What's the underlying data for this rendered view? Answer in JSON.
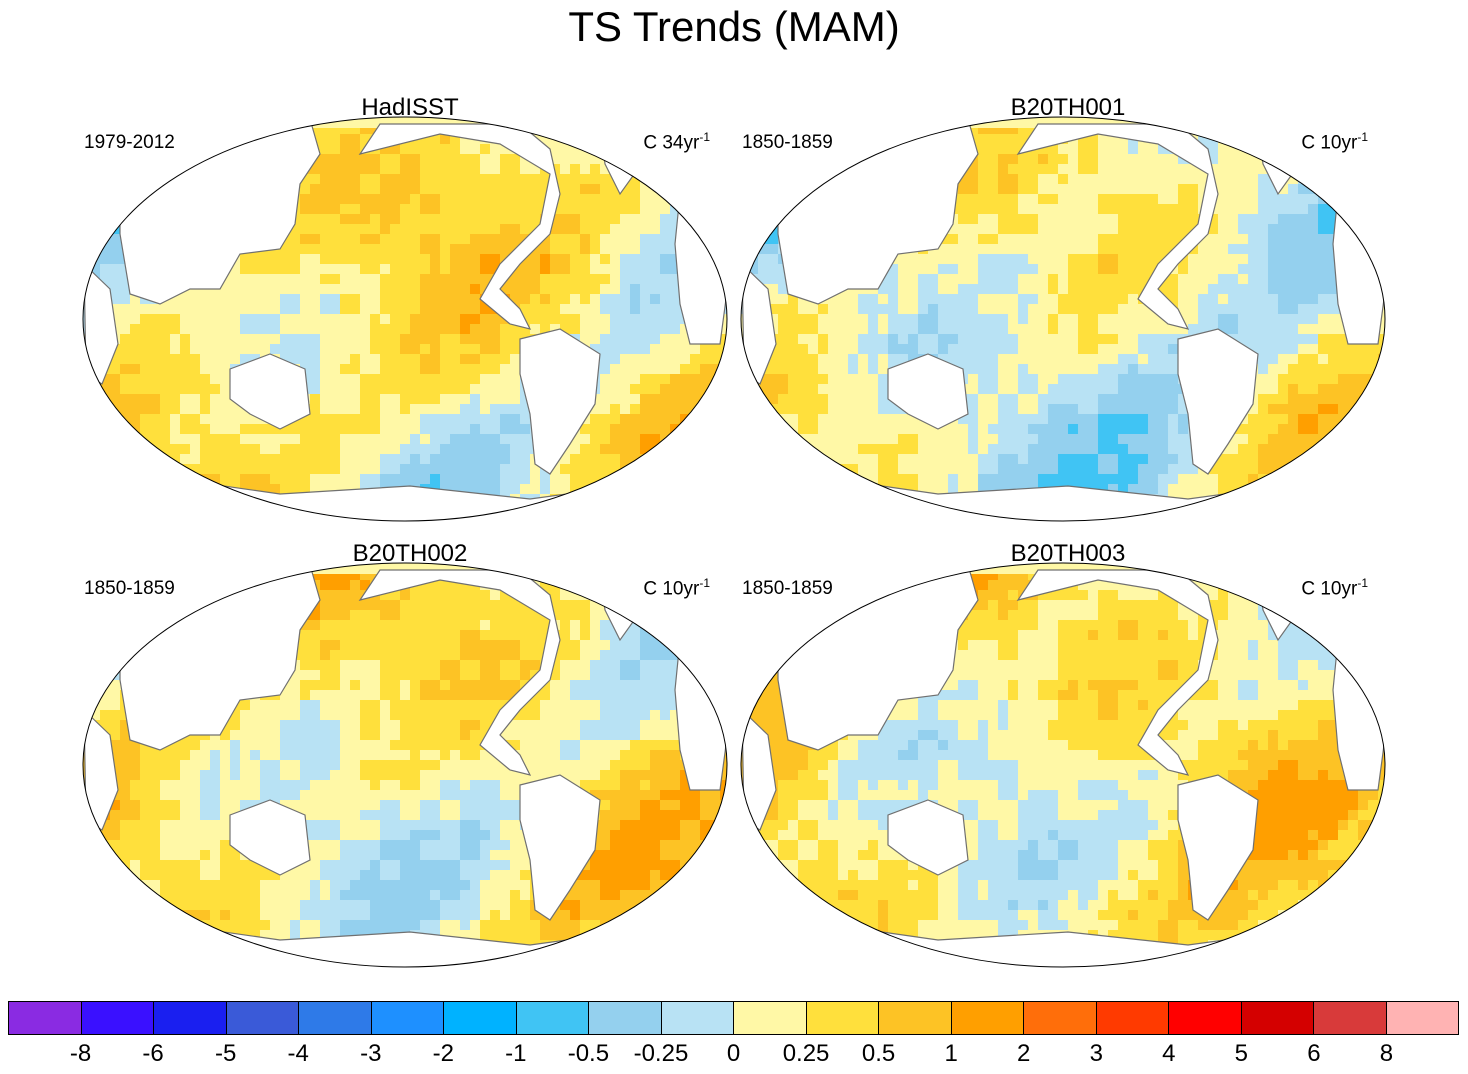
{
  "title": "TS Trends (MAM)",
  "panels": [
    {
      "title": "HadISST",
      "period": "1979-2012",
      "units_prefix": "C 34yr",
      "units_sup": "-1",
      "warm_bias": 0.55
    },
    {
      "title": "B20TH001",
      "period": "1850-1859",
      "units_prefix": "C 10yr",
      "units_sup": "-1",
      "warm_bias": 0.35
    },
    {
      "title": "B20TH002",
      "period": "1850-1859",
      "units_prefix": "C 10yr",
      "units_sup": "-1",
      "warm_bias": 0.55
    },
    {
      "title": "B20TH003",
      "period": "1850-1859",
      "units_prefix": "C 10yr",
      "units_sup": "-1",
      "warm_bias": 0.6
    }
  ],
  "colorbar": {
    "labels": [
      "-8",
      "-6",
      "-5",
      "-4",
      "-3",
      "-2",
      "-1",
      "-0.5",
      "-0.25",
      "0",
      "0.25",
      "0.5",
      "1",
      "2",
      "3",
      "4",
      "5",
      "6",
      "8"
    ],
    "colors": [
      "#8a2be2",
      "#3a10ff",
      "#1a1ff0",
      "#3a5ad8",
      "#2e7ae8",
      "#1e90ff",
      "#00b2ff",
      "#40c4f4",
      "#94d0ee",
      "#b8e2f4",
      "#fff8a6",
      "#ffe03c",
      "#fdc325",
      "#ff9f00",
      "#ff6e0a",
      "#ff3a00",
      "#ff0000",
      "#d40000",
      "#d83a3a",
      "#ffb3b3"
    ]
  }
}
